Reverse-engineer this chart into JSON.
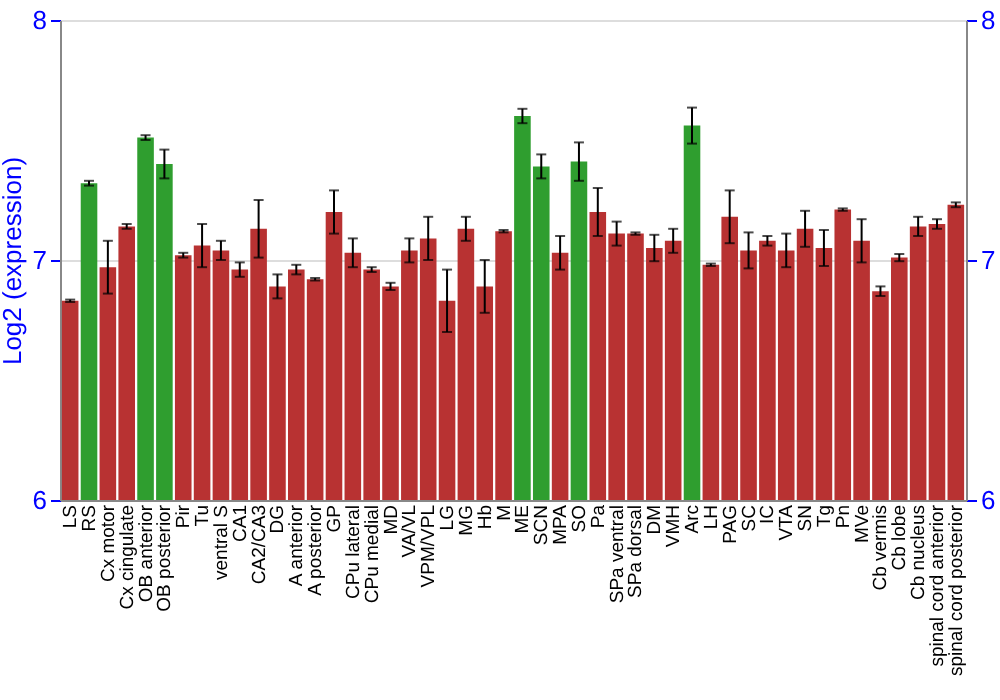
{
  "chart_data": {
    "type": "bar",
    "ylabel": "Log2 (expression)",
    "categories": [
      "LS",
      "RS",
      "Cx motor",
      "Cx cingulate",
      "OB anterior",
      "OB posterior",
      "Pir",
      "Tu",
      "ventral S",
      "CA1",
      "CA2/CA3",
      "DG",
      "A anterior",
      "A posterior",
      "GP",
      "CPu lateral",
      "CPu medial",
      "MD",
      "VA/VL",
      "VPM/VPL",
      "LG",
      "MG",
      "Hb",
      "M",
      "ME",
      "SCN",
      "MPA",
      "SO",
      "Pa",
      "SPa ventral",
      "SPa dorsal",
      "DM",
      "VMH",
      "Arc",
      "LH",
      "PAG",
      "SC",
      "IC",
      "VTA",
      "SN",
      "Tg",
      "Pn",
      "MVe",
      "Cb vermis",
      "Cb lobe",
      "Cb nucleus",
      "spinal cord anterior",
      "spinal cord posterior"
    ],
    "values": [
      6.83,
      7.32,
      6.97,
      7.14,
      7.51,
      7.4,
      7.02,
      7.06,
      7.04,
      6.96,
      7.13,
      6.89,
      6.96,
      6.92,
      7.2,
      7.03,
      6.96,
      6.89,
      7.04,
      7.09,
      6.83,
      7.13,
      6.89,
      7.12,
      7.6,
      7.39,
      7.03,
      7.41,
      7.2,
      7.11,
      7.11,
      7.05,
      7.08,
      7.56,
      6.98,
      7.18,
      7.04,
      7.08,
      7.04,
      7.13,
      7.05,
      7.21,
      7.08,
      6.87,
      7.01,
      7.14,
      7.15,
      7.23
    ],
    "errors": [
      0.005,
      0.01,
      0.11,
      0.01,
      0.01,
      0.06,
      0.01,
      0.09,
      0.04,
      0.03,
      0.12,
      0.05,
      0.02,
      0.005,
      0.09,
      0.06,
      0.01,
      0.015,
      0.05,
      0.09,
      0.13,
      0.05,
      0.11,
      0.005,
      0.03,
      0.05,
      0.07,
      0.08,
      0.1,
      0.05,
      0.005,
      0.055,
      0.05,
      0.075,
      0.005,
      0.11,
      0.075,
      0.02,
      0.07,
      0.075,
      0.075,
      0.005,
      0.09,
      0.02,
      0.015,
      0.04,
      0.02,
      0.01
    ],
    "colors": [
      "#b83232",
      "#2f9e2f",
      "#b83232",
      "#b83232",
      "#2f9e2f",
      "#2f9e2f",
      "#b83232",
      "#b83232",
      "#b83232",
      "#b83232",
      "#b83232",
      "#b83232",
      "#b83232",
      "#b83232",
      "#b83232",
      "#b83232",
      "#b83232",
      "#b83232",
      "#b83232",
      "#b83232",
      "#b83232",
      "#b83232",
      "#b83232",
      "#b83232",
      "#2f9e2f",
      "#2f9e2f",
      "#b83232",
      "#2f9e2f",
      "#b83232",
      "#b83232",
      "#b83232",
      "#b83232",
      "#b83232",
      "#2f9e2f",
      "#b83232",
      "#b83232",
      "#b83232",
      "#b83232",
      "#b83232",
      "#b83232",
      "#b83232",
      "#b83232",
      "#b83232",
      "#b83232",
      "#b83232",
      "#b83232",
      "#b83232",
      "#b83232"
    ],
    "ylim": [
      6,
      8
    ],
    "yticks": [
      6,
      7,
      8
    ],
    "y2lim": [
      6,
      8
    ],
    "y2ticks": [
      6,
      7,
      8
    ],
    "grid": "y"
  }
}
